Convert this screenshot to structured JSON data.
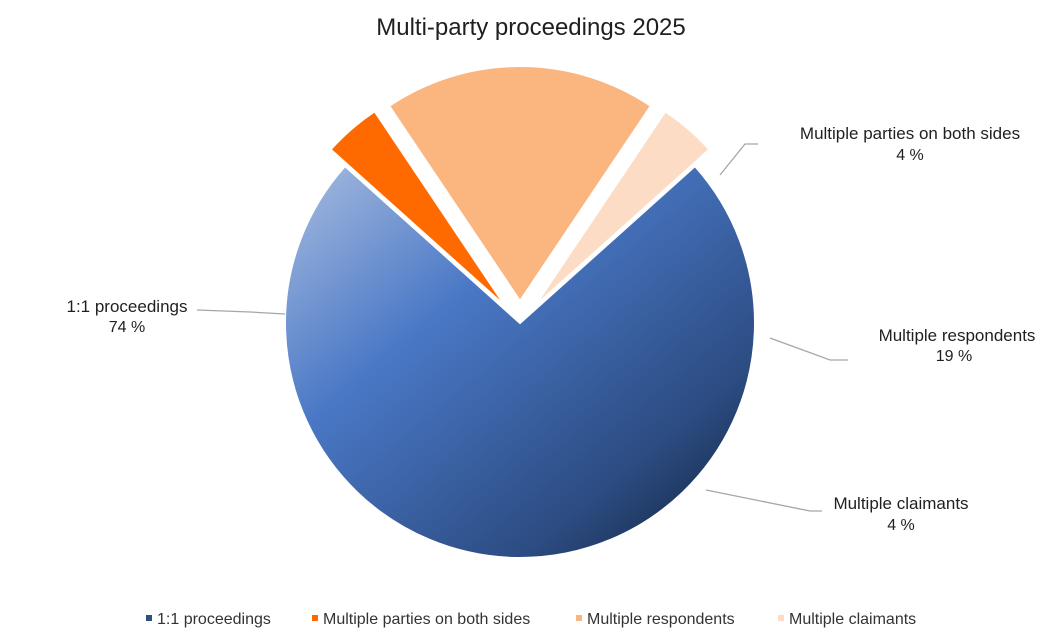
{
  "chart_data": {
    "type": "pie",
    "title": "Multi-party proceedings 2025",
    "unit": "%",
    "legend_position": "bottom",
    "slices": [
      {
        "name": "1:1 proceedings",
        "value": 74,
        "label": "74 %",
        "color": "#4472c4",
        "exploded": false
      },
      {
        "name": "Multiple parties on both sides",
        "value": 4,
        "label": "4 %",
        "color": "#ff6a00",
        "exploded": true
      },
      {
        "name": "Multiple respondents",
        "value": 19,
        "label": "19 %",
        "color": "#fbb57f",
        "exploded": true
      },
      {
        "name": "Multiple claimants",
        "value": 4,
        "label": "4 %",
        "color": "#fcdcc4",
        "exploded": true
      }
    ]
  }
}
